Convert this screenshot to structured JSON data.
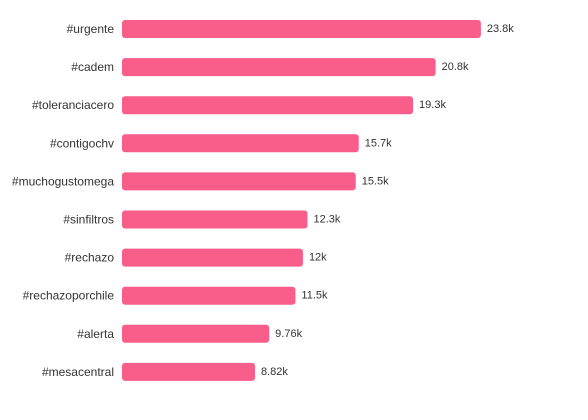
{
  "chart_data": {
    "type": "bar",
    "orientation": "horizontal",
    "bar_color": "#f95d8a",
    "xlim": [
      0,
      25200
    ],
    "categories": [
      "#urgente",
      "#cadem",
      "#toleranciacero",
      "#contigochv",
      "#muchogustomega",
      "#sinfiltros",
      "#rechazo",
      "#rechazoporchile",
      "#alerta",
      "#mesacentral"
    ],
    "values": [
      23800,
      20800,
      19300,
      15700,
      15500,
      12300,
      12000,
      11500,
      9760,
      8820
    ],
    "value_labels": [
      "23.8k",
      "20.8k",
      "19.3k",
      "15.7k",
      "15.5k",
      "12.3k",
      "12k",
      "11.5k",
      "9.76k",
      "8.82k"
    ],
    "grid": false,
    "legend": "none"
  }
}
